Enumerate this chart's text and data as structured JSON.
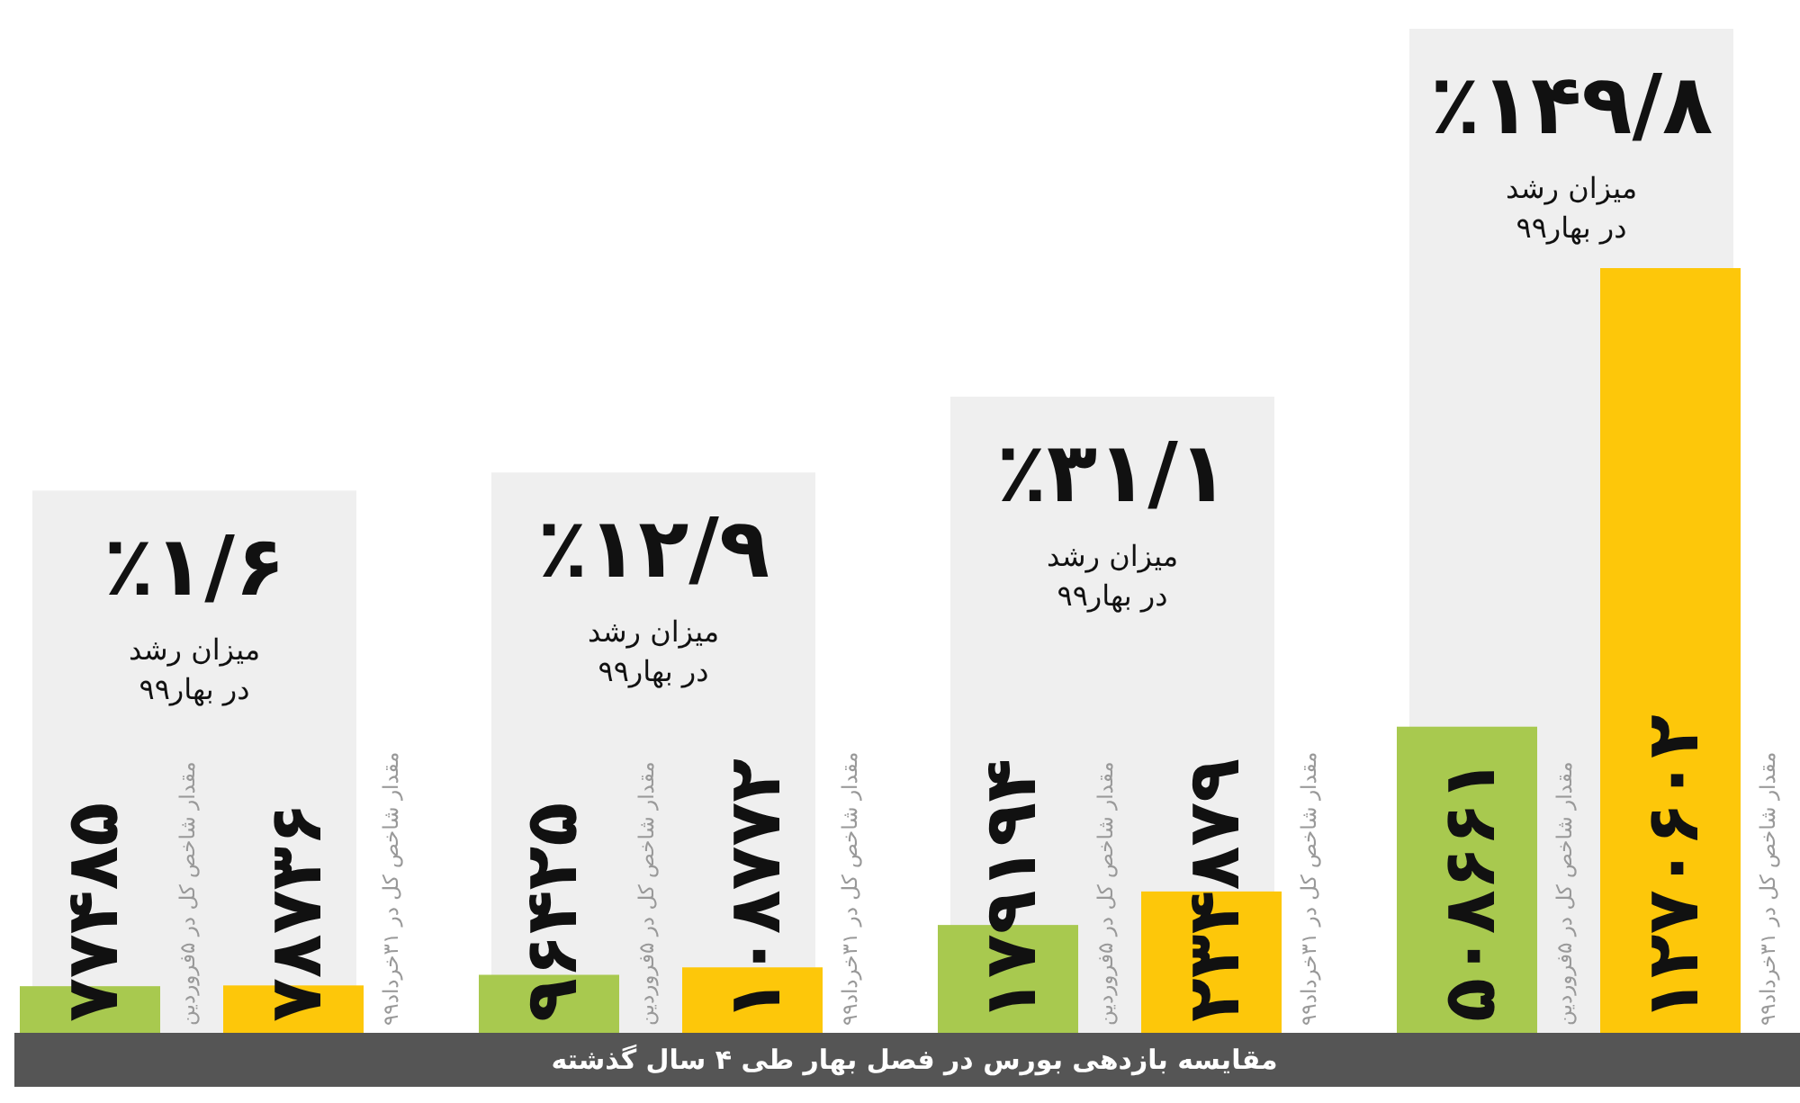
{
  "chart_data": {
    "type": "bar",
    "title": "مقایسه بازدهی بورس در فصل بهار طی ۴ سال گذشته",
    "categories": [
      null,
      null,
      null,
      null
    ],
    "series": [
      {
        "name": "مقدار شاخص کل در ۵فروردین",
        "color": "#a8c94f",
        "values": [
          77485,
          96425,
          179194,
          508661
        ],
        "value_labels": [
          "۷۷۴۸۵",
          "۹۶۴۲۵",
          "۱۷۹۱۹۴",
          "۵۰۸۶۶۱"
        ]
      },
      {
        "name": "مقدار شاخص کل در ۳۱خرداد۹۹",
        "color": "#fdc70a",
        "values": [
          78736,
          108772,
          234879,
          1270602
        ],
        "value_labels": [
          "۷۸۷۳۶",
          "۱۰۸۷۷۲",
          "۲۳۴۸۷۹",
          "۱۲۷۰۶۰۲"
        ]
      }
    ],
    "annotations": [
      "٪۱/۶",
      "میزان رشد",
      "در بهار۹۹",
      "٪۱۲/۹",
      "میزان رشد",
      "در بهار۹۹",
      "٪۳۱/۱",
      "میزان رشد",
      "در بهار۹۹",
      "٪۱۴۹/۸",
      "میزان رشد",
      "در بهار۹۹"
    ]
  }
}
